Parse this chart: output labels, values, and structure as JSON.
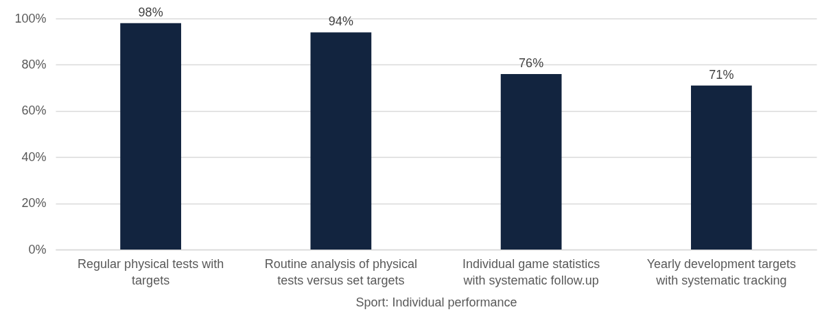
{
  "chart_data": {
    "type": "bar",
    "categories": [
      "Regular physical tests with targets",
      "Routine analysis of physical tests versus set targets",
      "Individual game statistics with systematic  follow.up",
      "Yearly development targets with systematic tracking"
    ],
    "values": [
      98,
      94,
      76,
      71
    ],
    "color": "#12243f",
    "value_labels": [
      "98%",
      "94%",
      "76%",
      "71%"
    ],
    "xlabel": "Sport: Individual performance",
    "ylim": [
      0,
      100
    ],
    "yticks": [
      {
        "value": 0,
        "label": "0%"
      },
      {
        "value": 20,
        "label": "20%"
      },
      {
        "value": 40,
        "label": "40%"
      },
      {
        "value": 60,
        "label": "60%"
      },
      {
        "value": 80,
        "label": "80%"
      },
      {
        "value": 100,
        "label": "100%"
      }
    ],
    "grid": "y"
  }
}
